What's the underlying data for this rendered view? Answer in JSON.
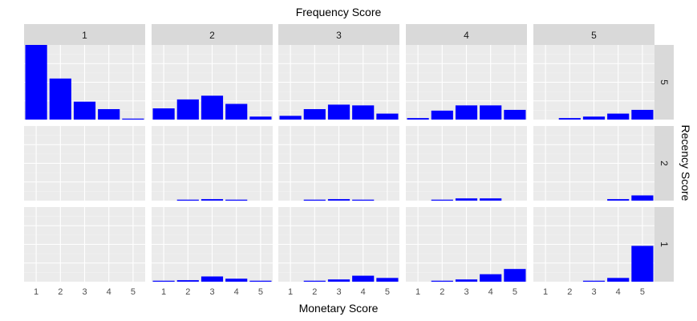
{
  "chart_data": {
    "type": "bar",
    "title": "Frequency Score",
    "xlabel": "Monetary Score",
    "right_label": "Recency Score",
    "col_facets": [
      "1",
      "2",
      "3",
      "4",
      "5"
    ],
    "row_facets": [
      "5",
      "2",
      "1"
    ],
    "x_categories": [
      "1",
      "2",
      "3",
      "4",
      "5"
    ],
    "ylim": [
      0,
      1
    ],
    "grid": true,
    "panels": [
      {
        "recency": "5",
        "frequency": "1",
        "values": [
          1.0,
          0.55,
          0.24,
          0.14,
          0.01
        ]
      },
      {
        "recency": "5",
        "frequency": "2",
        "values": [
          0.15,
          0.27,
          0.32,
          0.21,
          0.04
        ]
      },
      {
        "recency": "5",
        "frequency": "3",
        "values": [
          0.05,
          0.14,
          0.2,
          0.19,
          0.08
        ]
      },
      {
        "recency": "5",
        "frequency": "4",
        "values": [
          0.02,
          0.12,
          0.19,
          0.19,
          0.13
        ]
      },
      {
        "recency": "5",
        "frequency": "5",
        "values": [
          0.0,
          0.02,
          0.04,
          0.08,
          0.13
        ]
      },
      {
        "recency": "2",
        "frequency": "1",
        "values": [
          0.0,
          0.0,
          0.0,
          0.0,
          0.0
        ]
      },
      {
        "recency": "2",
        "frequency": "2",
        "values": [
          0.0,
          0.01,
          0.02,
          0.01,
          0.0
        ]
      },
      {
        "recency": "2",
        "frequency": "3",
        "values": [
          0.0,
          0.01,
          0.02,
          0.01,
          0.0
        ]
      },
      {
        "recency": "2",
        "frequency": "4",
        "values": [
          0.0,
          0.01,
          0.03,
          0.03,
          0.0
        ]
      },
      {
        "recency": "2",
        "frequency": "5",
        "values": [
          0.0,
          0.0,
          0.0,
          0.02,
          0.07
        ]
      },
      {
        "recency": "1",
        "frequency": "1",
        "values": [
          0.0,
          0.0,
          0.0,
          0.0,
          0.0
        ]
      },
      {
        "recency": "1",
        "frequency": "2",
        "values": [
          0.01,
          0.02,
          0.07,
          0.04,
          0.01
        ]
      },
      {
        "recency": "1",
        "frequency": "3",
        "values": [
          0.0,
          0.01,
          0.03,
          0.08,
          0.05
        ]
      },
      {
        "recency": "1",
        "frequency": "4",
        "values": [
          0.0,
          0.01,
          0.03,
          0.1,
          0.17
        ]
      },
      {
        "recency": "1",
        "frequency": "5",
        "values": [
          0.0,
          0.0,
          0.01,
          0.05,
          0.48
        ]
      }
    ],
    "colors": {
      "bar": "#0000ff",
      "panel_bg": "#ebebeb",
      "grid_major": "#ffffff",
      "grid_minor": "#f5f5f5",
      "strip_bg": "#d9d9d9",
      "strip_text": "#1a1a1a",
      "axis_text": "#4d4d4d",
      "title_text": "#000000"
    }
  }
}
